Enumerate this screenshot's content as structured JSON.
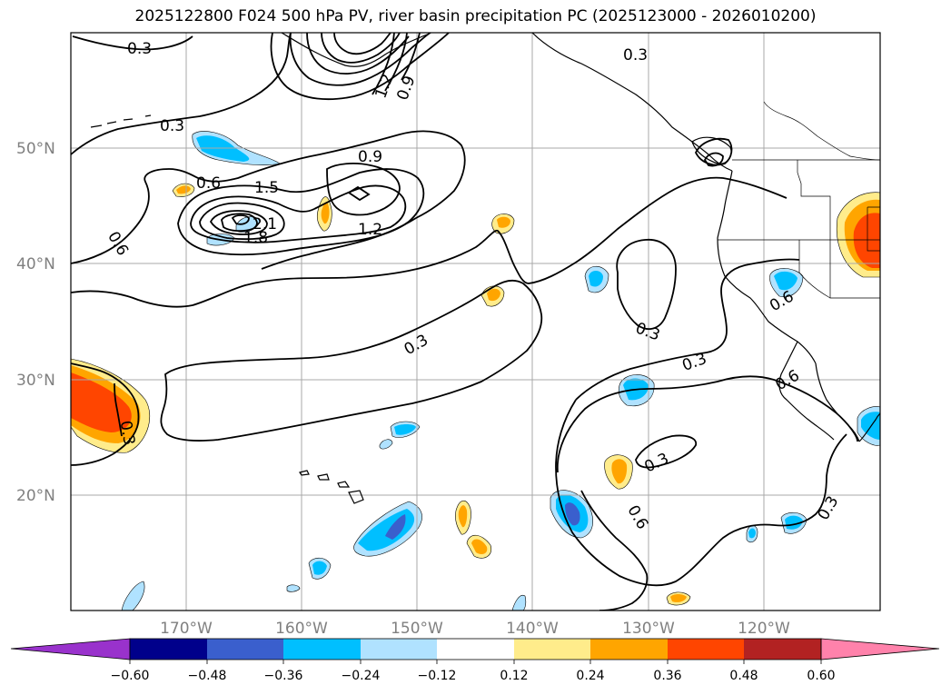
{
  "title": "2025122800 F024 500 hPa PV, river basin precipitation PC (2025123000 - 2026010200)",
  "lat_labels": [
    "50°N",
    "40°N",
    "30°N",
    "20°N"
  ],
  "lon_labels": [
    "170°W",
    "160°W",
    "150°W",
    "140°W",
    "130°W",
    "120°W"
  ],
  "contour_labels": [
    "0.3",
    "0.3",
    "0.3",
    "0.6",
    "0.9",
    "1.5",
    "2.1",
    "1.8",
    "1.2",
    "0.6",
    "0.3",
    "0.3",
    "0.3",
    "0.3",
    "0.6",
    "0.6",
    "0.3",
    "0.6",
    "0.3",
    "0.9",
    "1.2"
  ],
  "colorbar": {
    "ticks": [
      "−0.60",
      "−0.48",
      "−0.36",
      "−0.24",
      "−0.12",
      "0.12",
      "0.24",
      "0.36",
      "0.48",
      "0.60"
    ],
    "colors": [
      "#9932cc",
      "#00008b",
      "#3a5fcd",
      "#00bfff",
      "#b0e2ff",
      "#ffffff",
      "#ffec8b",
      "#ffa500",
      "#ff4500",
      "#b22222",
      "#ff82ab"
    ]
  }
}
